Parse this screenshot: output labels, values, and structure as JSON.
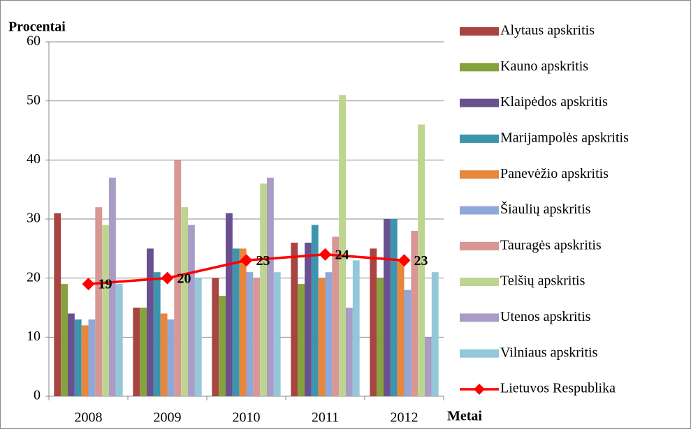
{
  "chart_data": {
    "type": "bar",
    "ylabel": "Procentai",
    "xlabel": "Metai",
    "categories": [
      "2008",
      "2009",
      "2010",
      "2011",
      "2012"
    ],
    "ylim": [
      0,
      60
    ],
    "yticks": [
      0,
      10,
      20,
      30,
      40,
      50,
      60
    ],
    "grid": true,
    "legend": "right",
    "series": [
      {
        "name": "Alytaus apskritis",
        "color": "#a84442",
        "values": [
          31,
          15,
          20,
          26,
          25
        ]
      },
      {
        "name": "Kauno apskritis",
        "color": "#86a23c",
        "values": [
          19,
          15,
          17,
          19,
          20
        ]
      },
      {
        "name": "Klaipėdos apskritis",
        "color": "#6b5090",
        "values": [
          14,
          25,
          31,
          26,
          30
        ]
      },
      {
        "name": "Marijampolės apskritis",
        "color": "#3c95ad",
        "values": [
          13,
          21,
          25,
          29,
          30
        ]
      },
      {
        "name": "Panevėžio apskritis",
        "color": "#e8863c",
        "values": [
          12,
          14,
          25,
          20,
          23
        ]
      },
      {
        "name": "Šiaulių apskritis",
        "color": "#8fa8da",
        "values": [
          13,
          13,
          21,
          21,
          18
        ]
      },
      {
        "name": "Tauragės apskritis",
        "color": "#d99694",
        "values": [
          32,
          40,
          20,
          27,
          28
        ]
      },
      {
        "name": "Telšių apskritis",
        "color": "#bdd590",
        "values": [
          29,
          32,
          36,
          51,
          46
        ]
      },
      {
        "name": "Utenos apskritis",
        "color": "#a99cc6",
        "values": [
          37,
          29,
          37,
          15,
          10
        ]
      },
      {
        "name": "Vilniaus apskritis",
        "color": "#93c7d9",
        "values": [
          19,
          20,
          21,
          23,
          21
        ]
      },
      {
        "name": "Lietuvos Respublika",
        "color": "#ff0000",
        "type": "line",
        "values": [
          19,
          20,
          23,
          24,
          23
        ]
      }
    ]
  }
}
